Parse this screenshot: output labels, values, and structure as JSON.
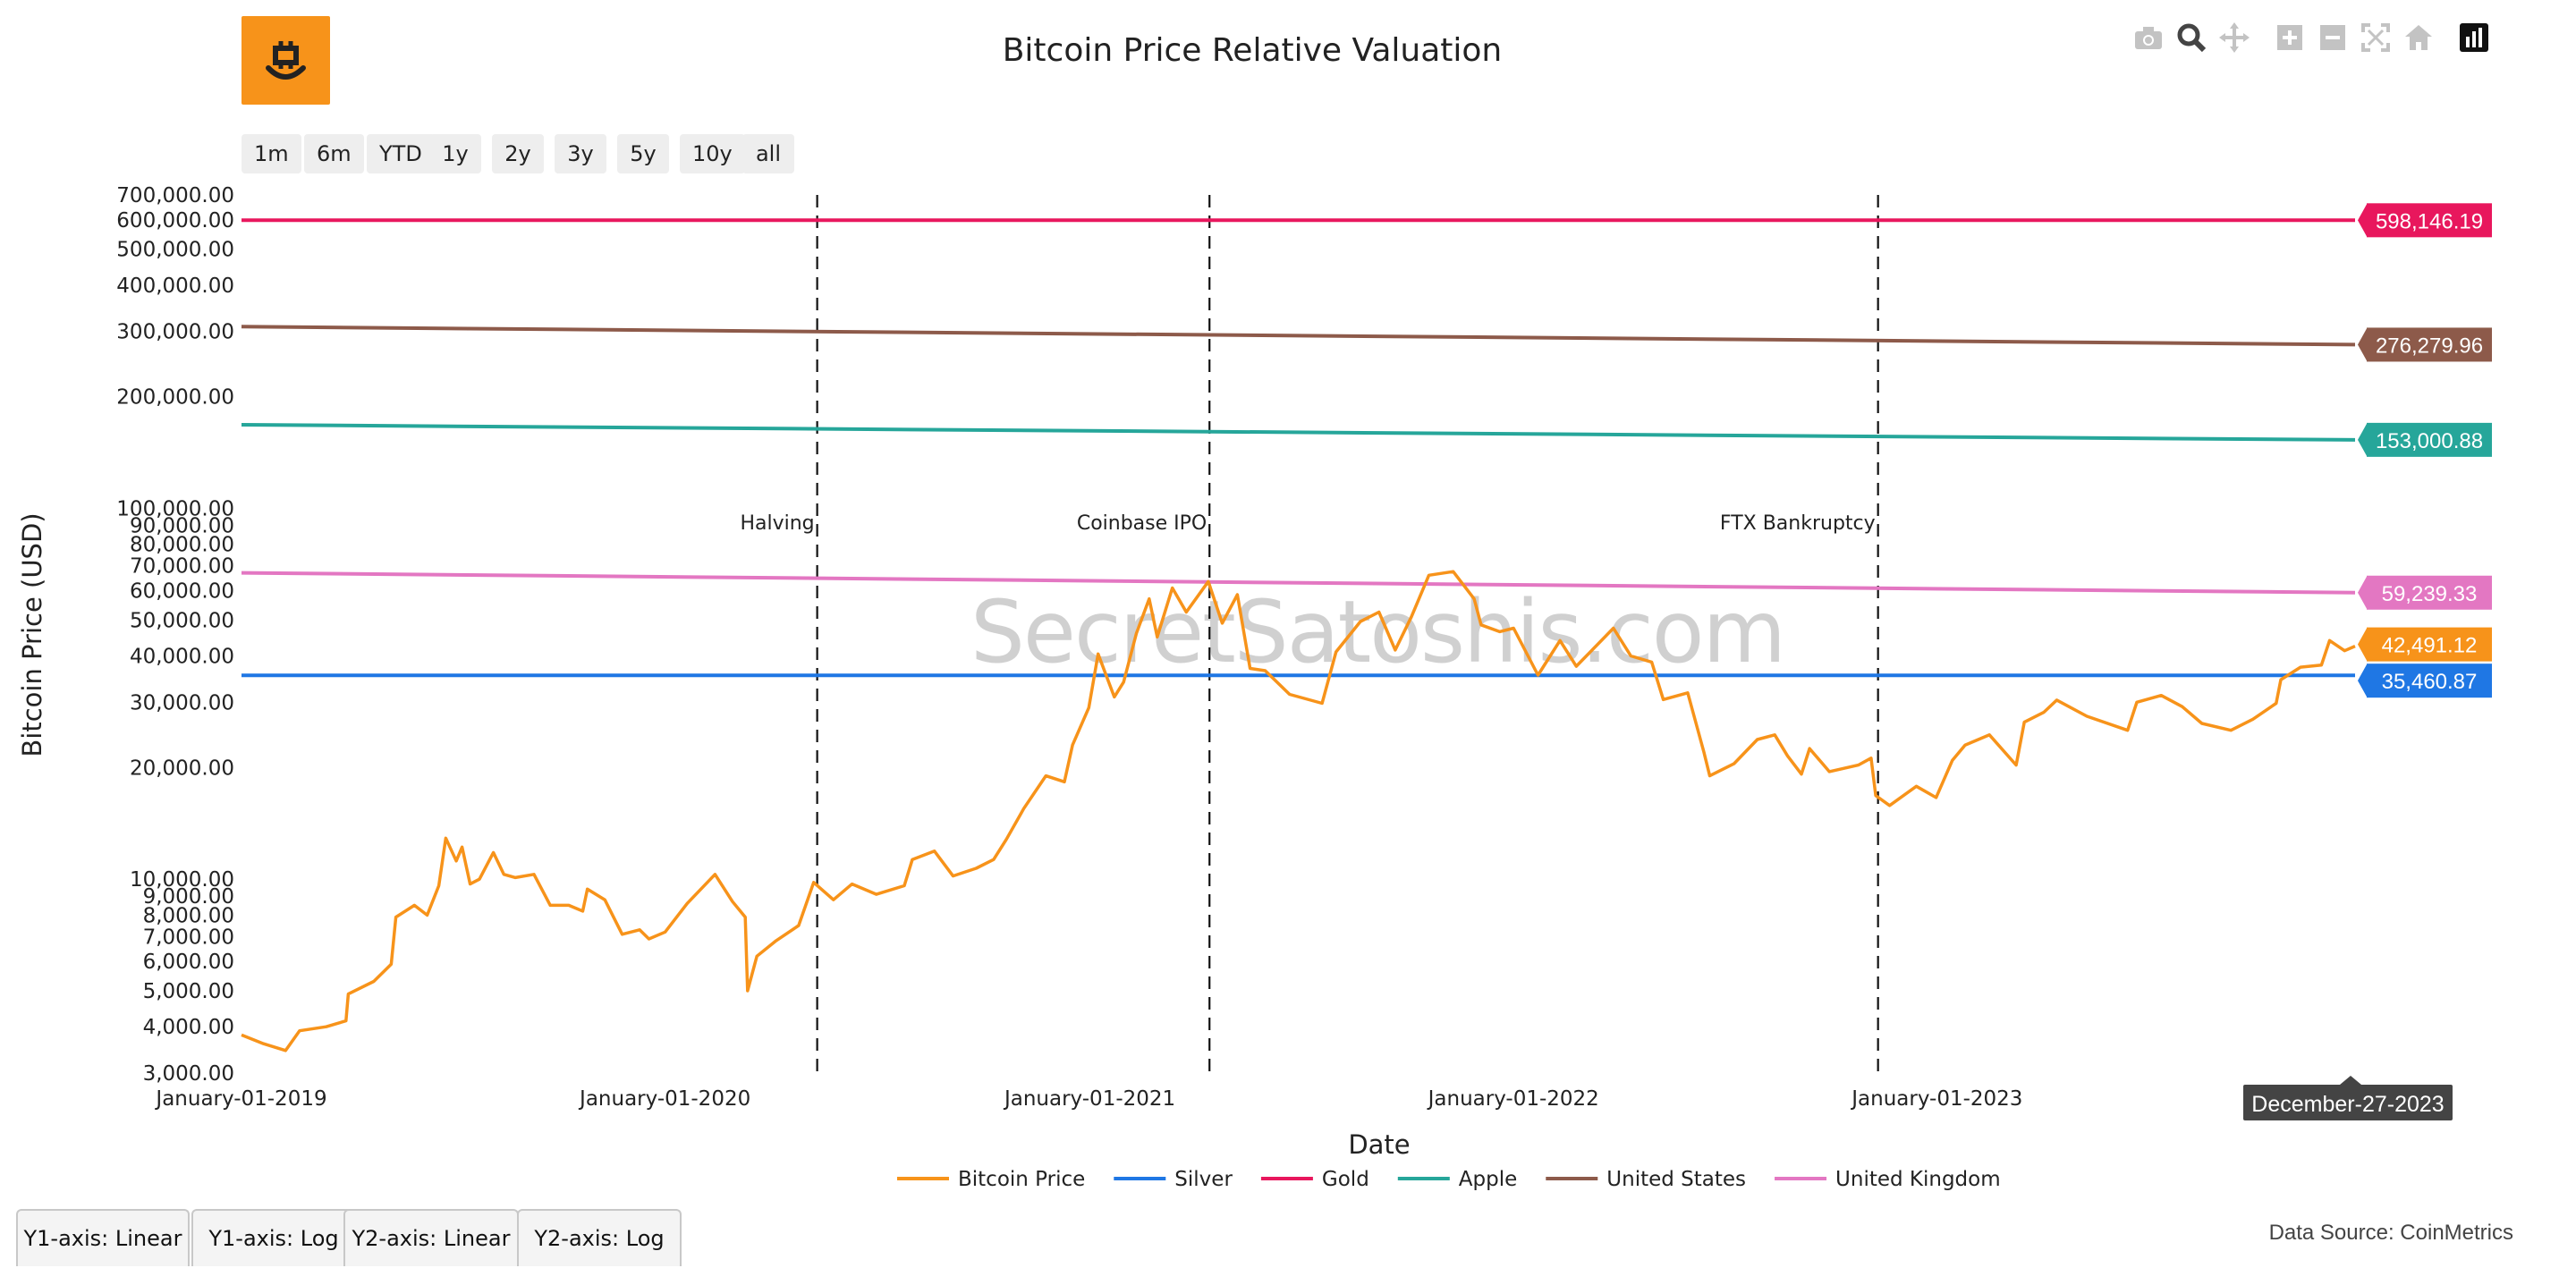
{
  "page": {
    "title": "Bitcoin Price Relative Valuation"
  },
  "range_selector": [
    "1m",
    "6m",
    "YTD",
    "1y",
    "2y",
    "3y",
    "5y",
    "10y",
    "all"
  ],
  "modebar": [
    "camera-icon",
    "zoom-icon",
    "pan-icon",
    "zoom-in-icon",
    "zoom-out-icon",
    "autoscale-icon",
    "reset-axes-icon",
    "plotly-logo-icon"
  ],
  "watermark": "SecretSatoshis.com",
  "hover_date": "December-27-2023",
  "axis_tabs": [
    "Y1-axis: Linear",
    "Y1-axis: Log",
    "Y2-axis: Linear",
    "Y2-axis: Log"
  ],
  "data_source": "Data Source: CoinMetrics",
  "colors": {
    "bitcoin": "#f7931a",
    "silver": "#1f77e4",
    "gold": "#e8175d",
    "apple": "#26a69a",
    "us": "#8d5a4a",
    "uk": "#e377c2",
    "logo": "#f7931a"
  },
  "chart_data": {
    "type": "line",
    "title": "Bitcoin Price Relative Valuation",
    "xlabel": "Date",
    "ylabel": "Bitcoin Price (USD)",
    "yscale": "log",
    "xlim": [
      "2019-01-01",
      "2023-12-27"
    ],
    "ylim": [
      3000,
      700000
    ],
    "x_ticks": [
      "January-01-2019",
      "January-01-2020",
      "January-01-2021",
      "January-01-2022",
      "January-01-2023"
    ],
    "y_ticks": [
      {
        "v": 3000,
        "label": "3,000.00"
      },
      {
        "v": 4000,
        "label": "4,000.00"
      },
      {
        "v": 5000,
        "label": "5,000.00"
      },
      {
        "v": 6000,
        "label": "6,000.00"
      },
      {
        "v": 7000,
        "label": "7,000.00"
      },
      {
        "v": 8000,
        "label": "8,000.00"
      },
      {
        "v": 9000,
        "label": "9,000.00"
      },
      {
        "v": 10000,
        "label": "10,000.00"
      },
      {
        "v": 20000,
        "label": "20,000.00"
      },
      {
        "v": 30000,
        "label": "30,000.00"
      },
      {
        "v": 40000,
        "label": "40,000.00"
      },
      {
        "v": 50000,
        "label": "50,000.00"
      },
      {
        "v": 60000,
        "label": "60,000.00"
      },
      {
        "v": 70000,
        "label": "70,000.00"
      },
      {
        "v": 80000,
        "label": "80,000.00"
      },
      {
        "v": 90000,
        "label": "90,000.00"
      },
      {
        "v": 100000,
        "label": "100,000.00"
      },
      {
        "v": 200000,
        "label": "200,000.00"
      },
      {
        "v": 300000,
        "label": "300,000.00"
      },
      {
        "v": 400000,
        "label": "400,000.00"
      },
      {
        "v": 500000,
        "label": "500,000.00"
      },
      {
        "v": 600000,
        "label": "600,000.00"
      },
      {
        "v": 700000,
        "label": "700,000.00"
      }
    ],
    "events": [
      {
        "date": "2020-05-11",
        "label": "Halving"
      },
      {
        "date": "2021-04-14",
        "label": "Coinbase IPO"
      },
      {
        "date": "2022-11-11",
        "label": "FTX Bankruptcy"
      }
    ],
    "legend_position": "bottom-center",
    "series": [
      {
        "name": "Bitcoin Price",
        "color": "#f7931a",
        "end_label": "42,491.12",
        "points": [
          [
            "2019-01-01",
            3800
          ],
          [
            "2019-01-20",
            3600
          ],
          [
            "2019-02-08",
            3450
          ],
          [
            "2019-02-20",
            3900
          ],
          [
            "2019-03-15",
            4000
          ],
          [
            "2019-04-01",
            4150
          ],
          [
            "2019-04-03",
            4900
          ],
          [
            "2019-04-25",
            5300
          ],
          [
            "2019-05-10",
            5900
          ],
          [
            "2019-05-14",
            7900
          ],
          [
            "2019-05-30",
            8500
          ],
          [
            "2019-06-10",
            8000
          ],
          [
            "2019-06-20",
            9600
          ],
          [
            "2019-06-26",
            12900
          ],
          [
            "2019-07-05",
            11200
          ],
          [
            "2019-07-10",
            12200
          ],
          [
            "2019-07-17",
            9700
          ],
          [
            "2019-07-25",
            10000
          ],
          [
            "2019-08-06",
            11800
          ],
          [
            "2019-08-15",
            10300
          ],
          [
            "2019-08-25",
            10100
          ],
          [
            "2019-09-10",
            10300
          ],
          [
            "2019-09-24",
            8500
          ],
          [
            "2019-10-10",
            8500
          ],
          [
            "2019-10-22",
            8200
          ],
          [
            "2019-10-26",
            9400
          ],
          [
            "2019-11-10",
            8800
          ],
          [
            "2019-11-25",
            7100
          ],
          [
            "2019-12-10",
            7300
          ],
          [
            "2019-12-18",
            6900
          ],
          [
            "2020-01-01",
            7200
          ],
          [
            "2020-01-20",
            8600
          ],
          [
            "2020-02-13",
            10300
          ],
          [
            "2020-02-28",
            8700
          ],
          [
            "2020-03-10",
            7900
          ],
          [
            "2020-03-12",
            5000
          ],
          [
            "2020-03-20",
            6200
          ],
          [
            "2020-04-05",
            6800
          ],
          [
            "2020-04-25",
            7500
          ],
          [
            "2020-05-08",
            9800
          ],
          [
            "2020-05-25",
            8800
          ],
          [
            "2020-06-10",
            9700
          ],
          [
            "2020-07-01",
            9100
          ],
          [
            "2020-07-25",
            9600
          ],
          [
            "2020-08-01",
            11300
          ],
          [
            "2020-08-20",
            11900
          ],
          [
            "2020-09-05",
            10200
          ],
          [
            "2020-09-25",
            10700
          ],
          [
            "2020-10-10",
            11300
          ],
          [
            "2020-10-21",
            12800
          ],
          [
            "2020-11-05",
            15500
          ],
          [
            "2020-11-24",
            19000
          ],
          [
            "2020-12-10",
            18300
          ],
          [
            "2020-12-17",
            23000
          ],
          [
            "2020-12-31",
            29000
          ],
          [
            "2021-01-08",
            40500
          ],
          [
            "2021-01-22",
            31000
          ],
          [
            "2021-01-30",
            34000
          ],
          [
            "2021-02-10",
            46000
          ],
          [
            "2021-02-21",
            57000
          ],
          [
            "2021-02-28",
            45000
          ],
          [
            "2021-03-13",
            61000
          ],
          [
            "2021-03-25",
            52500
          ],
          [
            "2021-04-13",
            63500
          ],
          [
            "2021-04-25",
            49000
          ],
          [
            "2021-05-08",
            58500
          ],
          [
            "2021-05-19",
            37000
          ],
          [
            "2021-06-01",
            36500
          ],
          [
            "2021-06-22",
            31500
          ],
          [
            "2021-07-20",
            29800
          ],
          [
            "2021-08-01",
            41000
          ],
          [
            "2021-08-22",
            49500
          ],
          [
            "2021-09-07",
            52500
          ],
          [
            "2021-09-21",
            41500
          ],
          [
            "2021-10-05",
            51000
          ],
          [
            "2021-10-20",
            66000
          ],
          [
            "2021-11-10",
            67500
          ],
          [
            "2021-11-28",
            57000
          ],
          [
            "2021-12-04",
            48500
          ],
          [
            "2021-12-20",
            46500
          ],
          [
            "2022-01-01",
            47500
          ],
          [
            "2022-01-22",
            35500
          ],
          [
            "2022-02-10",
            44000
          ],
          [
            "2022-02-24",
            37500
          ],
          [
            "2022-03-28",
            47500
          ],
          [
            "2022-04-12",
            40000
          ],
          [
            "2022-04-30",
            38500
          ],
          [
            "2022-05-10",
            30500
          ],
          [
            "2022-05-31",
            31800
          ],
          [
            "2022-06-14",
            22000
          ],
          [
            "2022-06-19",
            19000
          ],
          [
            "2022-07-10",
            20500
          ],
          [
            "2022-07-30",
            23800
          ],
          [
            "2022-08-14",
            24500
          ],
          [
            "2022-08-25",
            21500
          ],
          [
            "2022-09-06",
            19200
          ],
          [
            "2022-09-13",
            22500
          ],
          [
            "2022-09-30",
            19500
          ],
          [
            "2022-10-25",
            20300
          ],
          [
            "2022-11-05",
            21200
          ],
          [
            "2022-11-09",
            16800
          ],
          [
            "2022-11-21",
            15800
          ],
          [
            "2022-12-14",
            17800
          ],
          [
            "2022-12-31",
            16600
          ],
          [
            "2023-01-14",
            20900
          ],
          [
            "2023-01-25",
            23000
          ],
          [
            "2023-02-15",
            24500
          ],
          [
            "2023-03-10",
            20300
          ],
          [
            "2023-03-17",
            26500
          ],
          [
            "2023-04-03",
            28200
          ],
          [
            "2023-04-14",
            30400
          ],
          [
            "2023-05-10",
            27500
          ],
          [
            "2023-06-14",
            25200
          ],
          [
            "2023-06-22",
            30000
          ],
          [
            "2023-07-13",
            31300
          ],
          [
            "2023-07-31",
            29200
          ],
          [
            "2023-08-17",
            26300
          ],
          [
            "2023-09-11",
            25200
          ],
          [
            "2023-09-30",
            27000
          ],
          [
            "2023-10-20",
            29800
          ],
          [
            "2023-10-24",
            34500
          ],
          [
            "2023-11-10",
            37300
          ],
          [
            "2023-11-28",
            37800
          ],
          [
            "2023-12-05",
            44000
          ],
          [
            "2023-12-18",
            41300
          ],
          [
            "2023-12-27",
            42491
          ]
        ]
      },
      {
        "name": "Silver",
        "color": "#1f77e4",
        "end_label": "35,460.87",
        "points": [
          [
            "2019-01-01",
            35460.87
          ],
          [
            "2023-12-27",
            35460.87
          ]
        ]
      },
      {
        "name": "Gold",
        "color": "#e8175d",
        "end_label": "598,146.19",
        "points": [
          [
            "2019-01-01",
            598146.19
          ],
          [
            "2023-12-27",
            598146.19
          ]
        ]
      },
      {
        "name": "Apple",
        "color": "#26a69a",
        "end_label": "153,000.88",
        "points": [
          [
            "2019-01-01",
            168000
          ],
          [
            "2023-12-27",
            153000.88
          ]
        ]
      },
      {
        "name": "United States",
        "color": "#8d5a4a",
        "end_label": "276,279.96",
        "points": [
          [
            "2019-01-01",
            309000
          ],
          [
            "2023-12-27",
            276279.96
          ]
        ]
      },
      {
        "name": "United Kingdom",
        "color": "#e377c2",
        "end_label": "59,239.33",
        "points": [
          [
            "2019-01-01",
            67000
          ],
          [
            "2023-12-27",
            59239.33
          ]
        ]
      }
    ]
  }
}
